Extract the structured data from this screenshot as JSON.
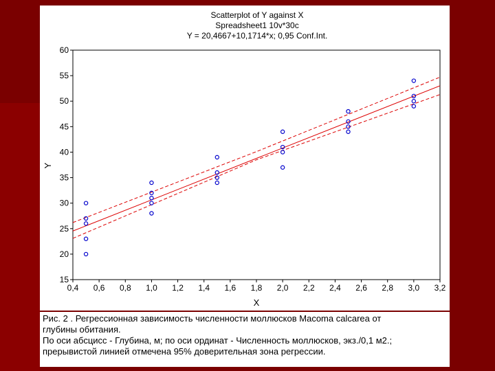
{
  "chart_data": {
    "type": "scatter",
    "title_lines": [
      "Scatterplot of Y against X",
      "Spreadsheet1 10v*30c",
      "Y = 20,4667+10,1714*x; 0,95 Conf.Int."
    ],
    "xlabel": "X",
    "ylabel": "Y",
    "xlim": [
      0.4,
      3.2
    ],
    "ylim": [
      15,
      60
    ],
    "x_tick_labels": [
      "0,4",
      "0,6",
      "0,8",
      "1,0",
      "1,2",
      "1,4",
      "1,6",
      "1,8",
      "2,0",
      "2,2",
      "2,4",
      "2,6",
      "2,8",
      "3,0",
      "3,2"
    ],
    "y_tick_labels": [
      "15",
      "20",
      "25",
      "30",
      "35",
      "40",
      "45",
      "50",
      "55",
      "60"
    ],
    "x_ticks": [
      0.4,
      0.6,
      0.8,
      1.0,
      1.2,
      1.4,
      1.6,
      1.8,
      2.0,
      2.2,
      2.4,
      2.6,
      2.8,
      3.0,
      3.2
    ],
    "y_ticks": [
      15,
      20,
      25,
      30,
      35,
      40,
      45,
      50,
      55,
      60
    ],
    "grid": false,
    "points": [
      {
        "x": 0.5,
        "y": 30
      },
      {
        "x": 0.5,
        "y": 27
      },
      {
        "x": 0.5,
        "y": 26
      },
      {
        "x": 0.5,
        "y": 23
      },
      {
        "x": 0.5,
        "y": 20
      },
      {
        "x": 1.0,
        "y": 34
      },
      {
        "x": 1.0,
        "y": 32
      },
      {
        "x": 1.0,
        "y": 31
      },
      {
        "x": 1.0,
        "y": 30
      },
      {
        "x": 1.0,
        "y": 28
      },
      {
        "x": 1.5,
        "y": 39
      },
      {
        "x": 1.5,
        "y": 36
      },
      {
        "x": 1.5,
        "y": 35
      },
      {
        "x": 1.5,
        "y": 34
      },
      {
        "x": 2.0,
        "y": 44
      },
      {
        "x": 2.0,
        "y": 41
      },
      {
        "x": 2.0,
        "y": 40
      },
      {
        "x": 2.0,
        "y": 37
      },
      {
        "x": 2.5,
        "y": 48
      },
      {
        "x": 2.5,
        "y": 46
      },
      {
        "x": 2.5,
        "y": 45
      },
      {
        "x": 2.5,
        "y": 44
      },
      {
        "x": 3.0,
        "y": 54
      },
      {
        "x": 3.0,
        "y": 51
      },
      {
        "x": 3.0,
        "y": 50
      },
      {
        "x": 3.0,
        "y": 49
      }
    ],
    "regression": {
      "intercept": 20.4667,
      "slope": 10.1714
    },
    "confidence_band": {
      "upper": [
        {
          "x": 0.4,
          "y": 26.2
        },
        {
          "x": 1.8,
          "y": 40.1
        },
        {
          "x": 3.2,
          "y": 54.7
        }
      ],
      "lower": [
        {
          "x": 0.4,
          "y": 23.1
        },
        {
          "x": 1.8,
          "y": 38.5
        },
        {
          "x": 3.2,
          "y": 51.3
        }
      ]
    },
    "colors": {
      "points": "#0000cc",
      "line": "#dd0000",
      "band": "#dd0000"
    }
  },
  "caption": {
    "lines": [
      "Рис. 2 . Регрессионная зависимость численности моллюсков Macoma calcarea от",
      "глубины обитания.",
      "По оси абсцисс - Глубина, м; по оси ординат - Численность моллюсков, экз./0,1 м2.;",
      "прерывистой линией отмечена 95% доверительная зона регрессии."
    ]
  }
}
